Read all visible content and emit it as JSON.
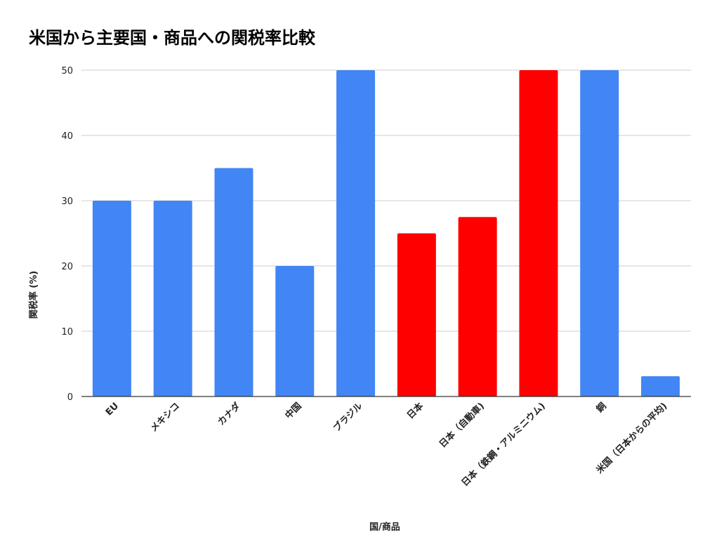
{
  "chart_data": {
    "type": "bar",
    "title": "米国から主要国・商品への関税率比較",
    "xlabel": "国/商品",
    "ylabel": "関税率 (%)",
    "ylim": [
      0,
      50
    ],
    "yticks": [
      0,
      10,
      20,
      30,
      40,
      50
    ],
    "grid": true,
    "categories": [
      "EU",
      "メキシコ",
      "カナダ",
      "中国",
      "ブラジル",
      "日本",
      "日本（自動車)",
      "日本（鉄鋼・アルミニウム)",
      "銅",
      "米国（日本からの平均)"
    ],
    "values": [
      30,
      30,
      35,
      20,
      50,
      25,
      27.5,
      50,
      50,
      3.1
    ],
    "bar_colors": [
      "#4285F4",
      "#4285F4",
      "#4285F4",
      "#4285F4",
      "#4285F4",
      "#FF0000",
      "#FF0000",
      "#FF0000",
      "#4285F4",
      "#4285F4"
    ],
    "colors": {
      "blue": "#4285F4",
      "red": "#FF0000",
      "grid": "#CCCCCC",
      "axis": "#333333"
    }
  }
}
